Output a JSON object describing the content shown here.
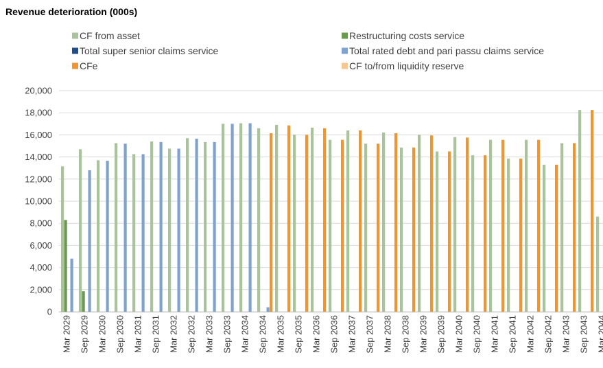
{
  "chart_data": {
    "type": "bar",
    "title": "Revenue deterioration (000s)",
    "xlabel": "",
    "ylabel": "",
    "ylim": [
      0,
      20000
    ],
    "yticks": [
      0,
      2000,
      4000,
      6000,
      8000,
      10000,
      12000,
      14000,
      16000,
      18000,
      20000
    ],
    "ytick_labels": [
      "0",
      "2,000",
      "4,000",
      "6,000",
      "8,000",
      "10,000",
      "12,000",
      "14,000",
      "16,000",
      "18,000",
      "20,000"
    ],
    "grid": true,
    "legend_position": "top",
    "categories": [
      "Mar 2029",
      "Sep 2029",
      "Mar 2030",
      "Sep 2030",
      "Mar 2031",
      "Sep 2031",
      "Mar 2032",
      "Sep 2032",
      "Mar 2033",
      "Sep 2033",
      "Mar 2034",
      "Sep 2034",
      "Mar 2035",
      "Sep 2035",
      "Mar 2036",
      "Sep 2036",
      "Mar 2037",
      "Sep 2037",
      "Mar 2038",
      "Sep 2038",
      "Mar 2039",
      "Sep 2039",
      "Mar 2040",
      "Sep 2040",
      "Mar 2041",
      "Sep 2041",
      "Mar 2042",
      "Sep 2042",
      "Mar 2043",
      "Sep 2043",
      "Mar 2044"
    ],
    "series": [
      {
        "name": "CF from asset",
        "color": "#a9c49a",
        "values": [
          13150,
          14700,
          13700,
          15250,
          14250,
          15400,
          14750,
          15700,
          15350,
          17000,
          17050,
          16600,
          16900,
          16000,
          16650,
          15550,
          16400,
          15200,
          16200,
          14850,
          16000,
          14500,
          15800,
          14150,
          15550,
          13850,
          15550,
          13300,
          15250,
          18250,
          8600
        ]
      },
      {
        "name": "Restructuring costs service",
        "color": "#6a9a4f",
        "values": [
          8300,
          1850,
          0,
          0,
          0,
          0,
          0,
          0,
          0,
          0,
          0,
          0,
          0,
          0,
          0,
          0,
          0,
          0,
          0,
          0,
          0,
          0,
          0,
          0,
          0,
          0,
          0,
          0,
          0,
          0,
          0
        ]
      },
      {
        "name": "Total super senior claims service",
        "color": "#1f4e8c",
        "values": [
          0,
          0,
          0,
          0,
          0,
          0,
          0,
          0,
          0,
          0,
          0,
          0,
          0,
          0,
          0,
          0,
          0,
          0,
          0,
          0,
          0,
          0,
          0,
          0,
          0,
          0,
          0,
          0,
          0,
          0,
          0
        ]
      },
      {
        "name": "Total rated debt and pari passu claims service",
        "color": "#7fa3cc",
        "values": [
          4800,
          12800,
          13650,
          15200,
          14250,
          15350,
          14750,
          15650,
          15350,
          17000,
          17050,
          400,
          0,
          0,
          0,
          0,
          0,
          0,
          0,
          0,
          0,
          0,
          0,
          0,
          0,
          0,
          0,
          0,
          0,
          0,
          0
        ]
      },
      {
        "name": "CFe",
        "color": "#f0962e",
        "values": [
          0,
          0,
          0,
          0,
          0,
          0,
          0,
          0,
          0,
          0,
          0,
          16150,
          16850,
          16000,
          16600,
          15550,
          16400,
          15200,
          16150,
          14850,
          15950,
          14500,
          15750,
          14150,
          15550,
          13850,
          15550,
          13300,
          15250,
          18250,
          0
        ]
      },
      {
        "name": "CF to/from liquidity reserve",
        "color": "#f5c890",
        "values": [
          0,
          0,
          0,
          0,
          0,
          0,
          0,
          0,
          0,
          0,
          0,
          0,
          0,
          0,
          0,
          0,
          0,
          0,
          0,
          0,
          0,
          0,
          0,
          0,
          0,
          0,
          0,
          0,
          0,
          0,
          0
        ]
      }
    ]
  }
}
